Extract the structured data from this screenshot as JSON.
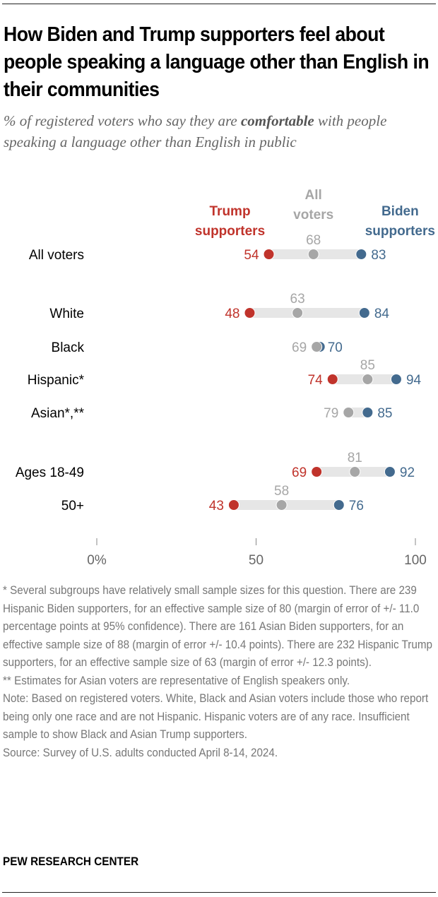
{
  "header": {
    "title": "How Biden and Trump supporters feel about people speaking a language other than English in their communities",
    "subtitle_pre": "% of registered voters who say they are ",
    "subtitle_bold": "comfortable",
    "subtitle_post": " with people speaking a language other than English in public"
  },
  "chart_data": {
    "type": "dot-range",
    "title": "How Biden and Trump supporters feel about people speaking a language other than English in their communities",
    "xlabel": "",
    "ylabel": "",
    "xlim": [
      0,
      100
    ],
    "x_ticks": [
      0,
      50,
      100
    ],
    "x_tick_labels": [
      "0%",
      "50",
      "100"
    ],
    "grid": false,
    "legend_placement": "top, inline above first row",
    "categories": [
      "All voters",
      "White",
      "Black",
      "Hispanic*",
      "Asian*,**",
      "Ages 18-49",
      "50+"
    ],
    "series": [
      {
        "name": "Trump supporters",
        "color": "#c0332b",
        "values": [
          54,
          48,
          null,
          74,
          null,
          69,
          43
        ]
      },
      {
        "name": "All voters",
        "color": "#a6a6a6",
        "values": [
          68,
          63,
          69,
          85,
          79,
          81,
          58
        ]
      },
      {
        "name": "Biden supporters",
        "color": "#436a8e",
        "values": [
          83,
          84,
          70,
          94,
          85,
          92,
          76
        ]
      }
    ],
    "legend": [
      {
        "label_lines": [
          "Trump",
          "supporters"
        ],
        "color": "#c0332b"
      },
      {
        "label_lines": [
          "All",
          "voters"
        ],
        "color": "#a6a6a6"
      },
      {
        "label_lines": [
          "Biden",
          "supporters"
        ],
        "color": "#436a8e"
      }
    ],
    "range_bar_color": "#e6e6e6"
  },
  "notes": {
    "footnote1": "* Several subgroups have relatively small sample sizes for this question. There are 239 Hispanic Biden supporters, for an effective sample size of 80 (margin of error of +/- 11.0 percentage points at 95% confidence). There are 161 Asian Biden supporters, for an effective sample size of 88 (margin of error +/- 10.4 points). There are 232 Hispanic Trump supporters, for an effective sample size of 63 (margin of error +/- 12.3 points).",
    "footnote2": "** Estimates for Asian voters are representative of English speakers only.",
    "note": "Note: Based on registered voters. White, Black and Asian voters include those who report being only one race and are not Hispanic. Hispanic voters are of any race. Insufficient sample to show Black and Asian Trump supporters.",
    "source": "Source: Survey of U.S. adults conducted April 8-14, 2024."
  },
  "brand": "PEW RESEARCH CENTER"
}
